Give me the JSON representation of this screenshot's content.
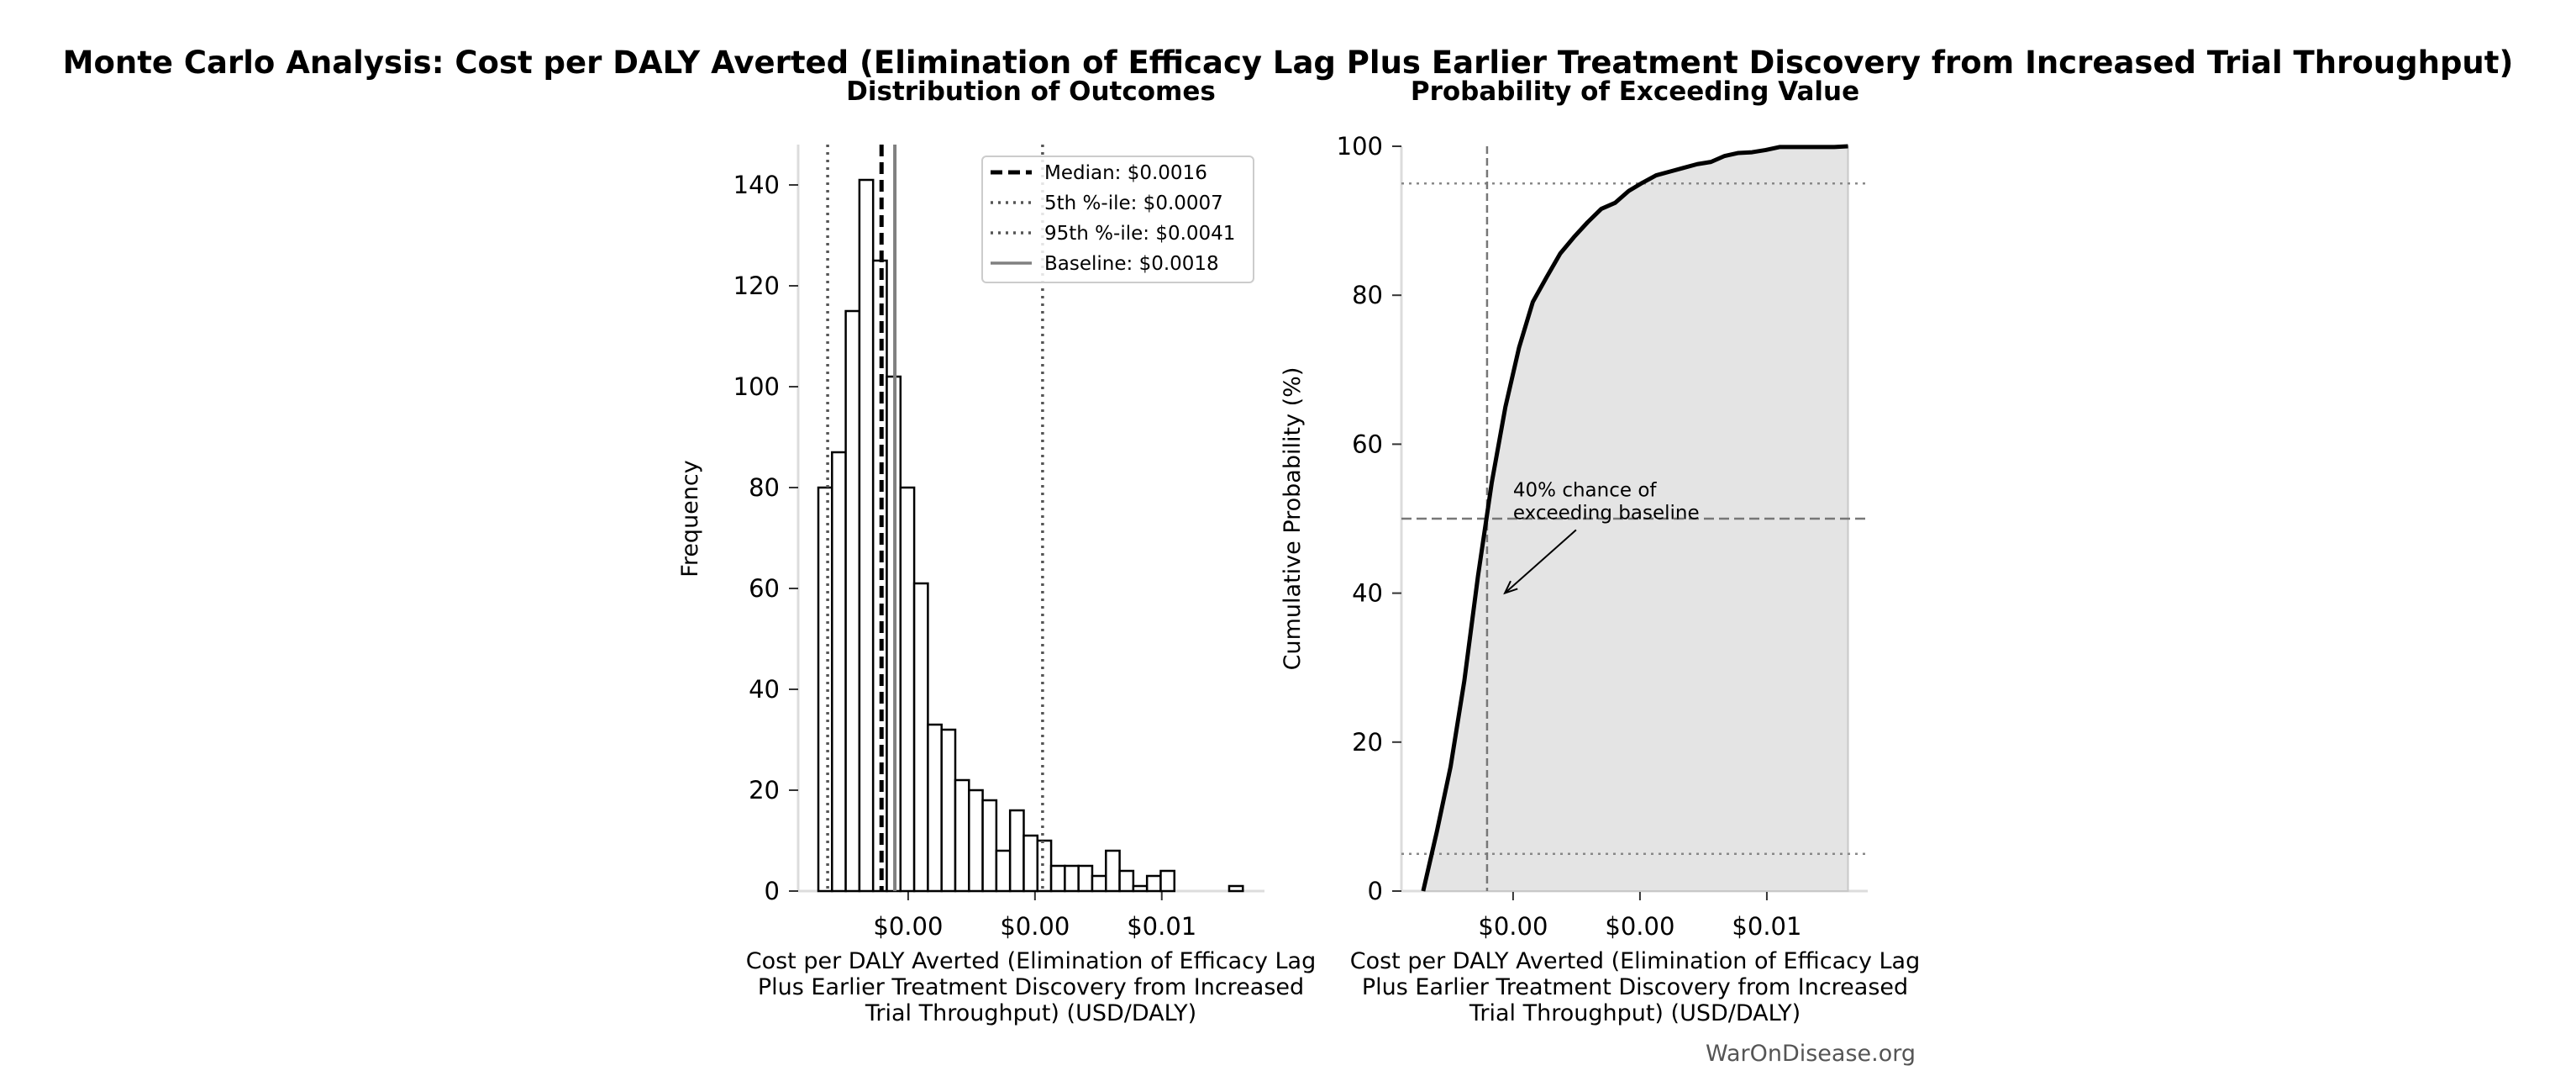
{
  "title": "Monte Carlo Analysis: Cost per DALY Averted (Elimination of Efficacy Lag Plus Earlier Treatment Discovery from Increased Trial Throughput)",
  "watermark": "WarOnDisease.org",
  "chart_data": [
    {
      "type": "bar",
      "title": "Distribution of Outcomes",
      "xlabel": "Cost per DALY Averted (Elimination of Efficacy Lag Plus Earlier Treatment Discovery from Increased Trial Throughput) (USD/DALY)",
      "ylabel": "Frequency",
      "xlim": [
        0.000265,
        0.00762
      ],
      "ylim": [
        0,
        148
      ],
      "bin_start": 0.000583,
      "bin_width": 0.000216,
      "counts": [
        80,
        87,
        115,
        141,
        125,
        102,
        80,
        61,
        33,
        32,
        22,
        20,
        18,
        8,
        16,
        11,
        10,
        5,
        5,
        5,
        3,
        8,
        4,
        1,
        3,
        4,
        0,
        0,
        0,
        0,
        1
      ],
      "xticks": [
        0.002,
        0.004,
        0.006
      ],
      "xtick_labels": [
        "$0.00",
        "$0.00",
        "$0.01"
      ],
      "yticks": [
        0,
        20,
        40,
        60,
        80,
        100,
        120,
        140
      ],
      "grid": false,
      "legend_position": "top-right",
      "reference_lines": [
        {
          "label": "Median: $0.0016",
          "value": 0.00158,
          "style": "dashed",
          "color": "#000000"
        },
        {
          "label": "5th %-ile: $0.0007",
          "value": 0.00073,
          "style": "dotted",
          "color": "#555555"
        },
        {
          "label": "95th %-ile: $0.0041",
          "value": 0.00412,
          "style": "dotted",
          "color": "#555555"
        },
        {
          "label": "Baseline: $0.0018",
          "value": 0.00179,
          "style": "solid",
          "color": "#808080"
        }
      ]
    },
    {
      "type": "line",
      "title": "Probability of Exceeding Value",
      "xlabel": "Cost per DALY Averted (Elimination of Efficacy Lag Plus Earlier Treatment Discovery from Increased Trial Throughput) (USD/DALY)",
      "ylabel": "Cumulative Probability (%)",
      "xlim": [
        0.00024,
        0.00759
      ],
      "ylim": [
        0,
        100
      ],
      "xticks": [
        0.002,
        0.004,
        0.006
      ],
      "xtick_labels": [
        "$0.00",
        "$0.00",
        "$0.01"
      ],
      "yticks": [
        0,
        20,
        40,
        60,
        80,
        100
      ],
      "grid": false,
      "fill_color": "#e4e4e4",
      "hlines": [
        95,
        50,
        5
      ],
      "vline": 0.00159,
      "annotation": {
        "text_lines": [
          "40% chance of",
          "exceeding baseline"
        ],
        "text_x": 0.002,
        "text_y": 53,
        "arrow_x": 0.00187,
        "arrow_y": 40
      }
    }
  ]
}
